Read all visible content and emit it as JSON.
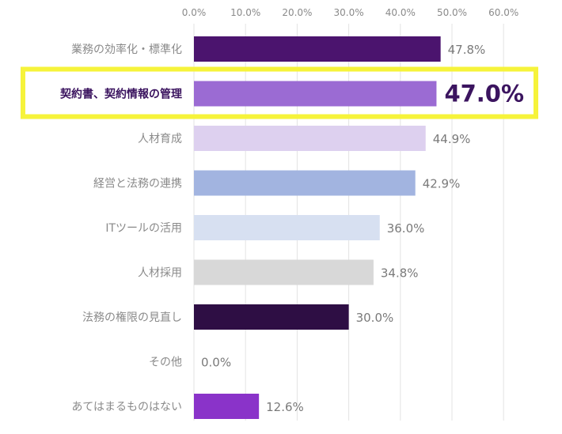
{
  "chart_data": {
    "type": "bar",
    "orientation": "horizontal",
    "title": "",
    "xlabel": "",
    "ylabel": "",
    "xlim": [
      0,
      60
    ],
    "ticks": [
      "0.0%",
      "10.0%",
      "20.0%",
      "30.0%",
      "40.0%",
      "50.0%",
      "60.0%"
    ],
    "grid": true,
    "categories": [
      "業務の効率化・標準化",
      "契約書、契約情報の管理",
      "人材育成",
      "経営と法務の連携",
      "ITツールの活用",
      "人材採用",
      "法務の権限の見直し",
      "その他",
      "あてはまるものはない"
    ],
    "values": [
      47.8,
      47.0,
      44.9,
      42.9,
      36.0,
      34.8,
      30.0,
      0.0,
      12.6
    ],
    "value_labels": [
      "47.8%",
      "47.0%",
      "44.9%",
      "42.9%",
      "36.0%",
      "34.8%",
      "30.0%",
      "0.0%",
      "12.6%"
    ],
    "colors": [
      "#4b146e",
      "#9b6bd3",
      "#ddd0ef",
      "#a2b4e0",
      "#d7e0f1",
      "#d8d8d8",
      "#2e0e44",
      "#cccccc",
      "#8a33c9"
    ],
    "highlight_index": 1,
    "highlight_color": "#f6f33a",
    "highlight_text_color": "#3b145f"
  }
}
